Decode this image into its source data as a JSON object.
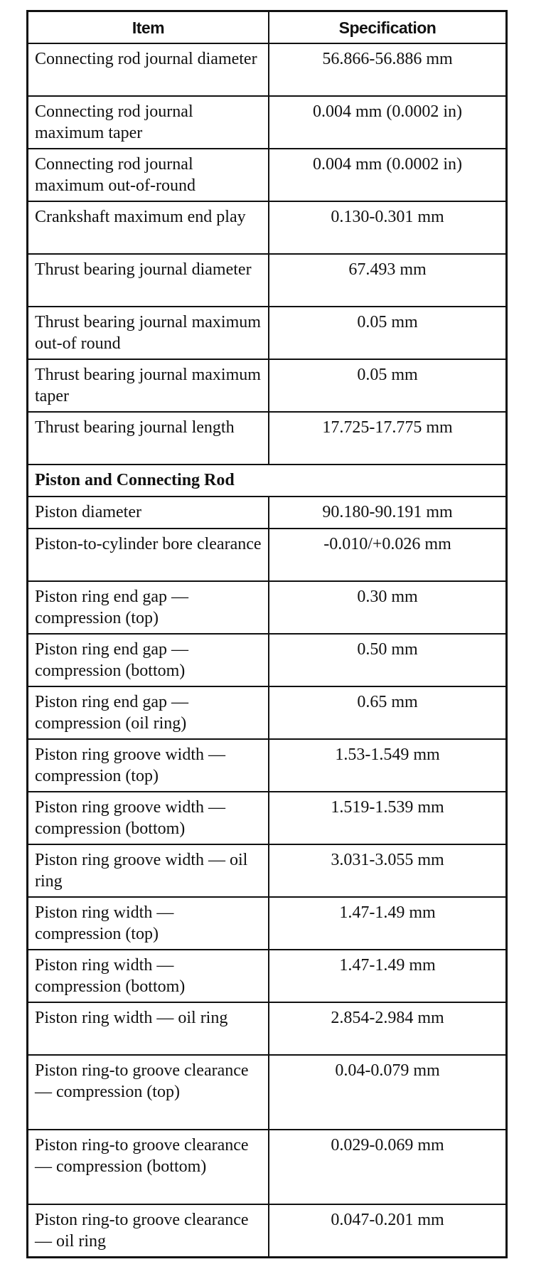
{
  "table": {
    "headers": {
      "item": "Item",
      "specification": "Specification"
    },
    "groups": [
      {
        "section": "",
        "rows": [
          {
            "item": "Connecting rod journal diameter",
            "spec": "56.866-56.886 mm",
            "lines": 2
          },
          {
            "item": "Connecting rod journal maximum taper",
            "spec": "0.004 mm (0.0002 in)",
            "lines": 2
          },
          {
            "item": "Connecting rod journal maximum out-of-round",
            "spec": "0.004 mm (0.0002 in)",
            "lines": 2
          },
          {
            "item": "Crankshaft maximum end play",
            "spec": "0.130-0.301 mm",
            "lines": 2
          },
          {
            "item": "Thrust bearing journal diameter",
            "spec": "67.493 mm",
            "lines": 2
          },
          {
            "item": "Thrust bearing journal maximum out-of round",
            "spec": "0.05 mm",
            "lines": 2
          },
          {
            "item": "Thrust bearing journal maximum taper",
            "spec": "0.05 mm",
            "lines": 2
          },
          {
            "item": "Thrust bearing journal length",
            "spec": "17.725-17.775 mm",
            "lines": 2
          }
        ]
      },
      {
        "section": "Piston and Connecting Rod",
        "rows": [
          {
            "item": "Piston diameter",
            "spec": "90.180-90.191 mm",
            "lines": 1
          },
          {
            "item": "Piston-to-cylinder bore clearance",
            "spec": "-0.010/+0.026 mm",
            "lines": 2
          },
          {
            "item": "Piston ring end gap — compression (top)",
            "spec": "0.30 mm",
            "lines": 2
          },
          {
            "item": "Piston ring end gap — compression (bottom)",
            "spec": "0.50 mm",
            "lines": 2
          },
          {
            "item": "Piston ring end gap — compression (oil ring)",
            "spec": "0.65 mm",
            "lines": 2
          },
          {
            "item": "Piston ring groove width — compression (top)",
            "spec": "1.53-1.549 mm",
            "lines": 2
          },
          {
            "item": "Piston ring groove width — compression (bottom)",
            "spec": "1.519-1.539 mm",
            "lines": 2
          },
          {
            "item": "Piston ring groove width — oil ring",
            "spec": "3.031-3.055 mm",
            "lines": 2
          },
          {
            "item": "Piston ring width — compression (top)",
            "spec": "1.47-1.49 mm",
            "lines": 2
          },
          {
            "item": "Piston ring width — compression (bottom)",
            "spec": "1.47-1.49 mm",
            "lines": 2
          },
          {
            "item": "Piston ring width — oil ring",
            "spec": "2.854-2.984 mm",
            "lines": 2
          },
          {
            "item": "Piston ring-to groove clearance — compression (top)",
            "spec": "0.04-0.079 mm",
            "lines": 3
          },
          {
            "item": "Piston ring-to groove clearance — compression (bottom)",
            "spec": "0.029-0.069 mm",
            "lines": 3
          },
          {
            "item": "Piston ring-to groove clearance — oil ring",
            "spec": "0.047-0.201 mm",
            "lines": 2
          }
        ]
      }
    ]
  }
}
